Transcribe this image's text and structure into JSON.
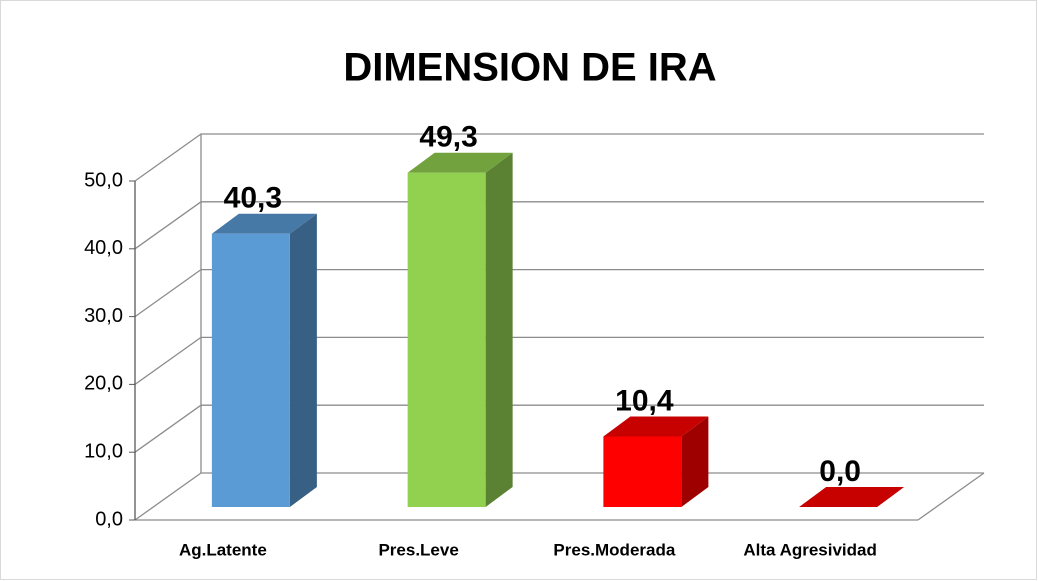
{
  "chart_data": {
    "type": "bar3d",
    "title": "DIMENSION DE  IRA",
    "categories": [
      "Ag.Latente",
      "Pres.Leve",
      "Pres.Moderada",
      "Alta Agresividad"
    ],
    "values": [
      40.3,
      49.3,
      10.4,
      0.0
    ],
    "value_labels": [
      "40,3",
      "49,3",
      "10,4",
      "0,0"
    ],
    "colors": [
      "#5b9bd5",
      "#92d050",
      "#ff0000",
      "#ff0000"
    ],
    "ylim": [
      0,
      50
    ],
    "yticks": [
      {
        "value": 0,
        "label": "0,0"
      },
      {
        "value": 10,
        "label": "10,0"
      },
      {
        "value": 20,
        "label": "20,0"
      },
      {
        "value": 30,
        "label": "30,0"
      },
      {
        "value": 40,
        "label": "40,0"
      },
      {
        "value": 50,
        "label": "50,0"
      }
    ],
    "grid": true
  }
}
